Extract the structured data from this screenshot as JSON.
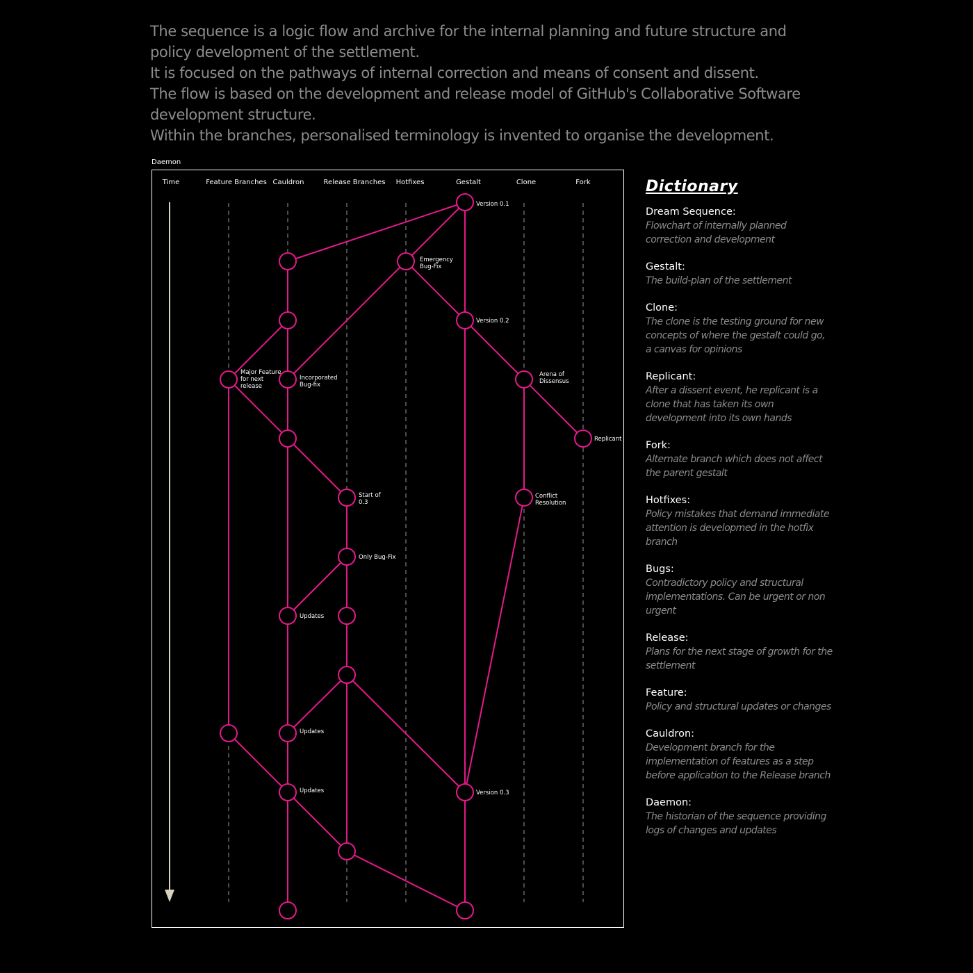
{
  "intro": [
    "The sequence is a logic flow and archive for the internal planning and future structure and policy development of the settlement.",
    "It is focused on the pathways of internal correction and means of consent and dissent.",
    "The flow is based on the development and release model of GitHub's Collaborative Software development structure.",
    "Within the branches, personalised terminology is invented to organise the development."
  ],
  "diagram": {
    "frame_label": "Daemon",
    "columns": [
      "Time",
      "Feature Branches",
      "Cauldron",
      "Release Branches",
      "Hotfixes",
      "Gestalt",
      "Clone",
      "Fork"
    ],
    "node_labels": {
      "gestalt_v01": [
        "Version 0.1"
      ],
      "hotfix_emergency": [
        "Emergency",
        "Bug-Fix"
      ],
      "gestalt_v02": [
        "Version 0.2"
      ],
      "feature_major": [
        "Major Feature",
        "for next",
        "release"
      ],
      "cauldron_incorporated": [
        "Incorporated",
        "Bug-fix"
      ],
      "clone_arena": [
        "Arena of",
        "Dissensus"
      ],
      "fork_replicant": [
        "Replicant"
      ],
      "release_start03": [
        "Start of",
        "0.3"
      ],
      "clone_conflict": [
        "Conflict",
        "Resolution"
      ],
      "release_onlybugfix": [
        "Only Bug-Fix"
      ],
      "cauldron_updates1": [
        "Updates"
      ],
      "cauldron_updates2": [
        "Updates"
      ],
      "cauldron_updates3": [
        "Updates"
      ],
      "gestalt_v03": [
        "Version 0.3"
      ]
    },
    "colors": {
      "flow": "#e6198c",
      "guide": "#9a9a9a",
      "time_arrow": "#d9d2c0"
    }
  },
  "dictionary": {
    "title": "Dictionary",
    "entries": [
      {
        "term": "Dream Sequence:",
        "definition": "Flowchart of internally planned correction and development"
      },
      {
        "term": "Gestalt:",
        "definition": "The build-plan of the settlement"
      },
      {
        "term": "Clone:",
        "definition": "The clone is the testing ground for new concepts of where the gestalt could go, a canvas for opinions"
      },
      {
        "term": "Replicant:",
        "definition": "After a dissent event, he replicant is a clone that has taken its own development into its own hands"
      },
      {
        "term": "Fork:",
        "definition": "Alternate branch which does not affect the parent gestalt"
      },
      {
        "term": "Hotfixes:",
        "definition": "Policy mistakes that demand immediate attention is developmed in the hotfix branch"
      },
      {
        "term": "Bugs:",
        "definition": "Contradictory policy and structural implementations. Can be urgent or non urgent"
      },
      {
        "term": "Release:",
        "definition": "Plans for the next stage of growth for the settlement"
      },
      {
        "term": "Feature:",
        "definition": "Policy and structural updates or changes"
      },
      {
        "term": "Cauldron:",
        "definition": "Development branch for the implementation of features as a step before application to the Release branch"
      },
      {
        "term": "Daemon:",
        "definition": "The historian of the sequence providing logs of changes and updates"
      }
    ]
  }
}
